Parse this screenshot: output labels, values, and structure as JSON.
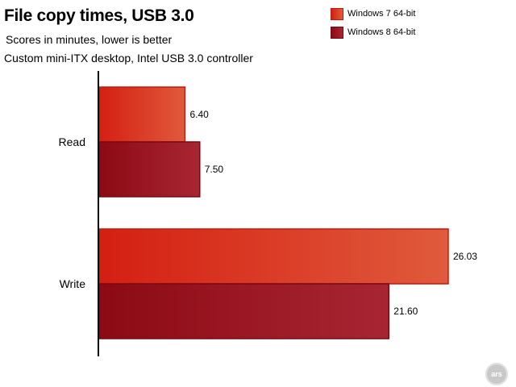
{
  "chart_data": {
    "type": "bar",
    "orientation": "horizontal",
    "title": "File copy times, USB 3.0",
    "subtitle": "Scores in minutes, lower is better",
    "subtitle2": "Custom mini-ITX desktop, Intel USB 3.0 controller",
    "categories": [
      "Read",
      "Write"
    ],
    "series": [
      {
        "name": "Windows 7 64-bit",
        "values": [
          6.4,
          26.03
        ],
        "labels": [
          "6.40",
          "26.03"
        ],
        "color": "#d41f12"
      },
      {
        "name": "Windows 8 64-bit",
        "values": [
          7.5,
          21.6
        ],
        "labels": [
          "7.50",
          "21.60"
        ],
        "color": "#8c0a14"
      }
    ],
    "xlim": [
      0,
      30
    ],
    "grid": false,
    "legend": "top-right"
  },
  "logo_text": "ars"
}
